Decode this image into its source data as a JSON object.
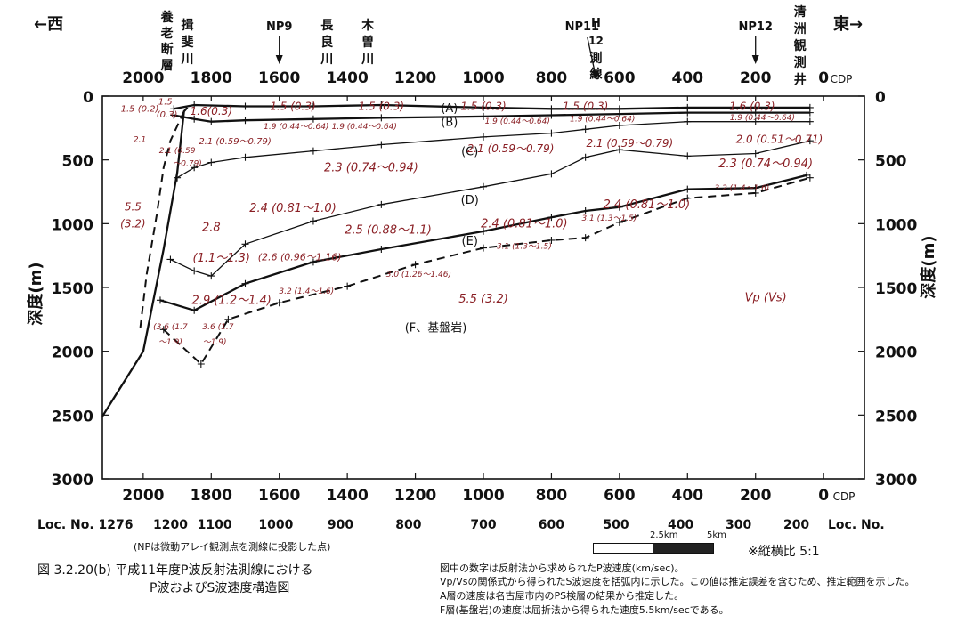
{
  "chart_data": {
    "type": "line",
    "ylabel": "深度(m)",
    "ylim": [
      3000,
      0
    ],
    "xlim_cdp": [
      2120,
      -120
    ],
    "x_axis_top_label": "CDP",
    "x_axis_bottom_label": "CDP",
    "y_ticks": [
      "0",
      "500",
      "1000",
      "1500",
      "2000",
      "2500",
      "3000"
    ],
    "cdp_ticks": [
      "2000",
      "1800",
      "1600",
      "1400",
      "1200",
      "1000",
      "800",
      "600",
      "400",
      "200",
      "0"
    ],
    "cdp_tick_values": [
      2000,
      1800,
      1600,
      1400,
      1200,
      1000,
      800,
      600,
      400,
      200,
      0
    ],
    "loc_label_left": "Loc. No. 1276",
    "loc_label_right": "Loc. No.",
    "loc_ticks": [
      {
        "label": "1200",
        "cdp": 1920
      },
      {
        "label": "1100",
        "cdp": 1790
      },
      {
        "label": "1000",
        "cdp": 1610
      },
      {
        "label": "900",
        "cdp": 1420
      },
      {
        "label": "800",
        "cdp": 1220
      },
      {
        "label": "700",
        "cdp": 1000
      },
      {
        "label": "600",
        "cdp": 800
      },
      {
        "label": "500",
        "cdp": 610
      },
      {
        "label": "400",
        "cdp": 420
      },
      {
        "label": "300",
        "cdp": 250
      },
      {
        "label": "200",
        "cdp": 80
      }
    ],
    "west_label": "←西",
    "east_label": "東→",
    "top_markers": [
      {
        "label": "NP9",
        "cdp": 1600,
        "arrow": true
      },
      {
        "label": "NP11",
        "cdp": 710,
        "arrow": false
      },
      {
        "label": "NP12",
        "cdp": 200,
        "arrow": true
      }
    ],
    "vertical_labels": [
      {
        "text": "養老断層",
        "cdp": 1930
      },
      {
        "text": "揖斐川",
        "cdp": 1870
      },
      {
        "text": "長良川",
        "cdp": 1460
      },
      {
        "text": "木曽川",
        "cdp": 1340
      },
      {
        "text": "H12測線",
        "cdp": 690
      },
      {
        "text": "清洲観測井",
        "cdp": 90
      }
    ],
    "series": [
      {
        "name": "A",
        "style": "thick",
        "points": [
          [
            1910,
            100
          ],
          [
            1850,
            70
          ],
          [
            1700,
            80
          ],
          [
            1500,
            80
          ],
          [
            1300,
            70
          ],
          [
            1000,
            90
          ],
          [
            800,
            100
          ],
          [
            600,
            100
          ],
          [
            400,
            90
          ],
          [
            200,
            90
          ],
          [
            40,
            90
          ]
        ]
      },
      {
        "name": "B",
        "style": "thick",
        "points": [
          [
            1910,
            150
          ],
          [
            1850,
            180
          ],
          [
            1800,
            200
          ],
          [
            1700,
            190
          ],
          [
            1500,
            180
          ],
          [
            1300,
            170
          ],
          [
            1000,
            160
          ],
          [
            800,
            150
          ],
          [
            600,
            140
          ],
          [
            400,
            130
          ],
          [
            200,
            130
          ],
          [
            40,
            130
          ]
        ]
      },
      {
        "name": "C",
        "style": "thin",
        "points": [
          [
            1900,
            640
          ],
          [
            1850,
            560
          ],
          [
            1800,
            520
          ],
          [
            1700,
            480
          ],
          [
            1500,
            430
          ],
          [
            1300,
            380
          ],
          [
            1000,
            320
          ],
          [
            800,
            290
          ],
          [
            700,
            260
          ],
          [
            600,
            230
          ],
          [
            400,
            200
          ],
          [
            200,
            200
          ],
          [
            40,
            200
          ]
        ]
      },
      {
        "name": "D",
        "style": "thin",
        "points": [
          [
            1920,
            1280
          ],
          [
            1850,
            1370
          ],
          [
            1800,
            1410
          ],
          [
            1700,
            1160
          ],
          [
            1500,
            980
          ],
          [
            1300,
            850
          ],
          [
            1000,
            710
          ],
          [
            800,
            610
          ],
          [
            700,
            480
          ],
          [
            600,
            420
          ],
          [
            400,
            470
          ],
          [
            200,
            450
          ],
          [
            40,
            350
          ]
        ]
      },
      {
        "name": "E",
        "style": "thick",
        "points": [
          [
            1950,
            1600
          ],
          [
            1850,
            1680
          ],
          [
            1700,
            1470
          ],
          [
            1500,
            1300
          ],
          [
            1300,
            1200
          ],
          [
            1000,
            1060
          ],
          [
            800,
            950
          ],
          [
            700,
            900
          ],
          [
            600,
            870
          ],
          [
            400,
            730
          ],
          [
            200,
            720
          ],
          [
            50,
            620
          ]
        ]
      },
      {
        "name": "F",
        "style": "dashed",
        "points": [
          [
            1940,
            1830
          ],
          [
            1830,
            2100
          ],
          [
            1750,
            1750
          ],
          [
            1600,
            1620
          ],
          [
            1400,
            1490
          ],
          [
            1200,
            1320
          ],
          [
            1000,
            1190
          ],
          [
            800,
            1130
          ],
          [
            700,
            1110
          ],
          [
            600,
            990
          ],
          [
            400,
            800
          ],
          [
            200,
            760
          ],
          [
            40,
            640
          ]
        ]
      },
      {
        "name": "fault_main",
        "style": "thick",
        "points": [
          [
            2120,
            2510
          ],
          [
            2000,
            2000
          ],
          [
            1940,
            1200
          ],
          [
            1900,
            600
          ],
          [
            1880,
            120
          ],
          [
            1870,
            90
          ]
        ]
      },
      {
        "name": "fault_dash",
        "style": "dashed",
        "points": [
          [
            1880,
            120
          ],
          [
            1920,
            350
          ],
          [
            1940,
            560
          ],
          [
            1960,
            930
          ],
          [
            1990,
            1400
          ],
          [
            2010,
            1850
          ]
        ]
      }
    ],
    "layer_labels": [
      {
        "text": "(A)",
        "cdp": 1100,
        "depth": 90
      },
      {
        "text": "(B)",
        "cdp": 1100,
        "depth": 200
      },
      {
        "text": "(C)",
        "cdp": 1040,
        "depth": 430
      },
      {
        "text": "(D)",
        "cdp": 1040,
        "depth": 810
      },
      {
        "text": "(E)",
        "cdp": 1040,
        "depth": 1130
      },
      {
        "text": "(F、基盤岩)",
        "cdp": 1140,
        "depth": 1810
      }
    ],
    "velocity_annotations": [
      {
        "text": "1.5 (0.2)",
        "cdp": 2010,
        "depth": 95,
        "size": 10
      },
      {
        "text": "(0.3)",
        "cdp": 1930,
        "depth": 140,
        "size": 10
      },
      {
        "text": "1.5",
        "cdp": 1935,
        "depth": 40,
        "size": 10
      },
      {
        "text": "1.6(0.3)",
        "cdp": 1800,
        "depth": 120,
        "size": 12
      },
      {
        "text": "1.5 (0.3)",
        "cdp": 1560,
        "depth": 80,
        "size": 12
      },
      {
        "text": "1.5 (0.3)",
        "cdp": 1300,
        "depth": 80,
        "size": 12
      },
      {
        "text": "1.5 (0.3)",
        "cdp": 1000,
        "depth": 80,
        "size": 12
      },
      {
        "text": "1.5 (0.3)",
        "cdp": 700,
        "depth": 80,
        "size": 12
      },
      {
        "text": "1.6 (0.3)",
        "cdp": 210,
        "depth": 80,
        "size": 12
      },
      {
        "text": "1.9 (0.44〜0.64)",
        "cdp": 1550,
        "depth": 230,
        "size": 9
      },
      {
        "text": "1.9 (0.44〜0.64)",
        "cdp": 1350,
        "depth": 230,
        "size": 9
      },
      {
        "text": "1.9 (0.44〜0.64)",
        "cdp": 900,
        "depth": 190,
        "size": 9
      },
      {
        "text": "1.9 (0.44〜0.64)",
        "cdp": 650,
        "depth": 170,
        "size": 9
      },
      {
        "text": "1.9 (0.44〜0.64)",
        "cdp": 180,
        "depth": 160,
        "size": 9
      },
      {
        "text": "2.1",
        "cdp": 2010,
        "depth": 330,
        "size": 9
      },
      {
        "text": "2.1 (0.59",
        "cdp": 1900,
        "depth": 420,
        "size": 9
      },
      {
        "text": "〜0.79)",
        "cdp": 1870,
        "depth": 520,
        "size": 9
      },
      {
        "text": "2.1 (0.59〜0.79)",
        "cdp": 1730,
        "depth": 350,
        "size": 10
      },
      {
        "text": "2.1 (0.59〜0.79)",
        "cdp": 920,
        "depth": 410,
        "size": 12
      },
      {
        "text": "2.1 (0.59〜0.79)",
        "cdp": 570,
        "depth": 370,
        "size": 12
      },
      {
        "text": "2.0 (0.51〜0.71)",
        "cdp": 130,
        "depth": 340,
        "size": 12
      },
      {
        "text": "2.3 (0.74〜0.94)",
        "cdp": 1330,
        "depth": 560,
        "size": 13
      },
      {
        "text": "2.3 (0.74〜0.94)",
        "cdp": 170,
        "depth": 530,
        "size": 13
      },
      {
        "text": "2.4 (0.81〜1.0)",
        "cdp": 1560,
        "depth": 880,
        "size": 13
      },
      {
        "text": "2.4 (0.81〜1.0)",
        "cdp": 880,
        "depth": 1000,
        "size": 13
      },
      {
        "text": "2.4 (0.81〜1.0)",
        "cdp": 520,
        "depth": 850,
        "size": 13
      },
      {
        "text": "2.5 (0.88〜1.1)",
        "cdp": 1280,
        "depth": 1050,
        "size": 13
      },
      {
        "text": "5.5",
        "cdp": 2030,
        "depth": 870,
        "size": 12
      },
      {
        "text": "(3.2)",
        "cdp": 2030,
        "depth": 1000,
        "size": 12
      },
      {
        "text": "2.8",
        "cdp": 1800,
        "depth": 1030,
        "size": 13
      },
      {
        "text": "(1.1〜1.3)",
        "cdp": 1770,
        "depth": 1270,
        "size": 13
      },
      {
        "text": "(2.6 (0.96〜1.16)",
        "cdp": 1540,
        "depth": 1260,
        "size": 11
      },
      {
        "text": "3.0 (1.26〜1.46)",
        "cdp": 1190,
        "depth": 1390,
        "size": 9
      },
      {
        "text": "3.1 (1.3〜1.5)",
        "cdp": 880,
        "depth": 1170,
        "size": 9
      },
      {
        "text": "3.1 (1.3〜1.5)",
        "cdp": 630,
        "depth": 950,
        "size": 9
      },
      {
        "text": "3.2 (1.4〜1.6)",
        "cdp": 240,
        "depth": 710,
        "size": 9
      },
      {
        "text": "2.9 (1.2〜1.4)",
        "cdp": 1740,
        "depth": 1600,
        "size": 13
      },
      {
        "text": "3.2 (1.4〜1.6)",
        "cdp": 1520,
        "depth": 1520,
        "size": 9
      },
      {
        "text": "(3.6 (1.7",
        "cdp": 1920,
        "depth": 1800,
        "size": 9
      },
      {
        "text": "〜1.9)",
        "cdp": 1920,
        "depth": 1920,
        "size": 9
      },
      {
        "text": "3.6 (1.7",
        "cdp": 1780,
        "depth": 1800,
        "size": 9
      },
      {
        "text": "〜1.9)",
        "cdp": 1790,
        "depth": 1920,
        "size": 9
      },
      {
        "text": "5.5 (3.2)",
        "cdp": 1000,
        "depth": 1590,
        "size": 13
      },
      {
        "text": "Vp (Vs)",
        "cdp": 170,
        "depth": 1580,
        "size": 13
      }
    ]
  },
  "note_np": "(NPは微動アレイ観測点を測線に投影した点)",
  "caption_line1": "図 3.2.20(b) 平成11年度P波反射法測線における",
  "caption_line2": "P波およびS波速度構造図",
  "scale_label_1": "2.5km",
  "scale_label_2": "5km",
  "ratio_label": "※縦横比 5:1",
  "notes": [
    "図中の数字は反射法から求められたP波速度(km/sec)。",
    "Vp/Vsの関係式から得られたS波速度を括弧内に示した。この値は推定誤差を含むため、推定範囲を示した。",
    "A層の速度は名古屋市内のPS検層の結果から推定した。",
    "F層(基盤岩)の速度は屈折法から得られた速度5.5km/secである。"
  ]
}
